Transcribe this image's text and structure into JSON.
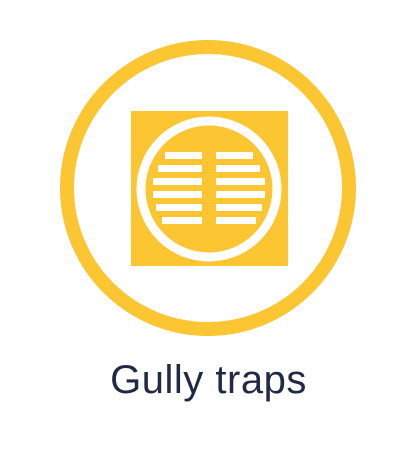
{
  "label": "Gully traps",
  "icon": "gully-trap-icon",
  "colors": {
    "accent": "#fcc532",
    "grille": "#ffffff",
    "text": "#1f2a44",
    "background": "#ffffff"
  }
}
